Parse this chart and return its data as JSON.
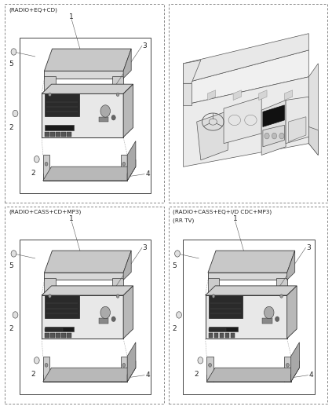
{
  "bg_color": "#ffffff",
  "line_color": "#333333",
  "text_color": "#222222",
  "light_gray": "#cccccc",
  "mid_gray": "#999999",
  "dark_gray": "#444444",
  "panels": [
    {
      "id": "top_left",
      "label": "(RADIO+EQ+CD)",
      "ox": 0.015,
      "oy": 0.505,
      "ow": 0.478,
      "oh": 0.485
    },
    {
      "id": "top_right",
      "label": "",
      "ox": 0.508,
      "oy": 0.505,
      "ow": 0.478,
      "oh": 0.485
    },
    {
      "id": "bottom_left",
      "label": "(RADIO+CASS+CD+MP3)",
      "ox": 0.015,
      "oy": 0.015,
      "ow": 0.478,
      "oh": 0.482
    },
    {
      "id": "bottom_right",
      "label": "(RADIO+CASS+EQ+I/D CDC+MP3)\n(RR TV)",
      "ox": 0.508,
      "oy": 0.015,
      "ow": 0.478,
      "oh": 0.482
    }
  ]
}
